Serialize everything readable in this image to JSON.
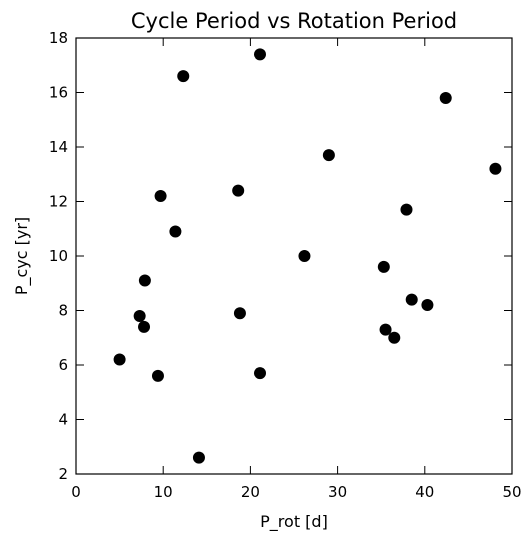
{
  "chart_data": {
    "type": "scatter",
    "title": "Cycle Period vs Rotation Period",
    "xlabel": "P_rot [d]",
    "ylabel": "P_cyc [yr]",
    "xlim": [
      0,
      50
    ],
    "ylim": [
      2,
      18
    ],
    "xticks": [
      0,
      10,
      20,
      30,
      40,
      50
    ],
    "yticks": [
      2,
      4,
      6,
      8,
      10,
      12,
      14,
      16,
      18
    ],
    "grid": false,
    "legend": "none",
    "marker_color": "#000000",
    "points": [
      {
        "x": 5.0,
        "y": 6.2
      },
      {
        "x": 7.3,
        "y": 7.8
      },
      {
        "x": 7.8,
        "y": 7.4
      },
      {
        "x": 7.9,
        "y": 9.1
      },
      {
        "x": 9.4,
        "y": 5.6
      },
      {
        "x": 9.7,
        "y": 12.2
      },
      {
        "x": 11.4,
        "y": 10.9
      },
      {
        "x": 12.3,
        "y": 16.6
      },
      {
        "x": 14.1,
        "y": 2.6
      },
      {
        "x": 18.6,
        "y": 12.4
      },
      {
        "x": 18.8,
        "y": 7.9
      },
      {
        "x": 21.1,
        "y": 17.4
      },
      {
        "x": 21.1,
        "y": 5.7
      },
      {
        "x": 26.2,
        "y": 10.0
      },
      {
        "x": 29.0,
        "y": 13.7
      },
      {
        "x": 35.3,
        "y": 9.6
      },
      {
        "x": 35.5,
        "y": 7.3
      },
      {
        "x": 36.5,
        "y": 7.0
      },
      {
        "x": 37.9,
        "y": 11.7
      },
      {
        "x": 38.5,
        "y": 8.4
      },
      {
        "x": 40.3,
        "y": 8.2
      },
      {
        "x": 42.4,
        "y": 15.8
      },
      {
        "x": 48.1,
        "y": 13.2
      }
    ]
  }
}
